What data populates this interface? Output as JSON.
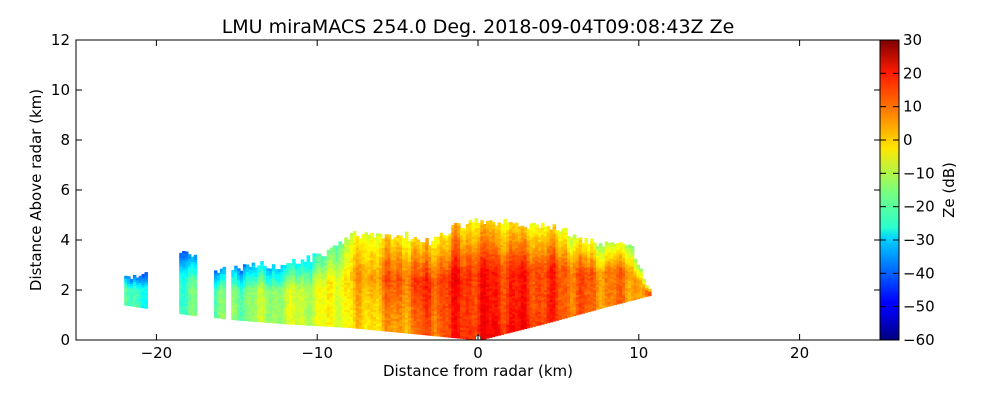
{
  "chart_data": {
    "type": "heatmap",
    "title": "LMU miraMACS 254.0 Deg. 2018-09-04T09:08:43Z  Ze",
    "xlabel": "Distance from radar (km)",
    "ylabel": "Distance Above radar  (km)",
    "xlim": [
      -25,
      25
    ],
    "ylim": [
      0,
      12
    ],
    "xticks": [
      "−20",
      "−10",
      "0",
      "10",
      "20"
    ],
    "yticks": [
      "0",
      "2",
      "4",
      "6",
      "8",
      "10",
      "12"
    ],
    "colorbar": {
      "label": "Ze (dB)",
      "range": [
        -60,
        30
      ],
      "ticks": [
        "−60",
        "−50",
        "−40",
        "−30",
        "−20",
        "−10",
        "0",
        "10",
        "20",
        "30"
      ],
      "colormap": "jet"
    },
    "echo_top": [
      [
        -22.0,
        2.5
      ],
      [
        -21.5,
        2.4
      ],
      [
        -20.5,
        2.7
      ],
      [
        -19.5,
        2.6
      ],
      [
        -18.8,
        3.4
      ],
      [
        -17.9,
        3.3
      ],
      [
        -16.5,
        2.7
      ],
      [
        -15.5,
        2.8
      ],
      [
        -14.0,
        2.9
      ],
      [
        -12.5,
        3.0
      ],
      [
        -11.0,
        3.2
      ],
      [
        -9.5,
        3.4
      ],
      [
        -8.0,
        4.2
      ],
      [
        -6.0,
        4.1
      ],
      [
        -4.0,
        4.1
      ],
      [
        -3.0,
        3.8
      ],
      [
        -1.5,
        4.5
      ],
      [
        0.0,
        4.7
      ],
      [
        2.0,
        4.6
      ],
      [
        4.0,
        4.6
      ],
      [
        5.5,
        4.3
      ],
      [
        6.5,
        4.0
      ],
      [
        7.5,
        3.8
      ],
      [
        8.5,
        4.0
      ],
      [
        9.5,
        3.6
      ],
      [
        10.0,
        2.8
      ],
      [
        10.7,
        1.8
      ]
    ],
    "echo_bottom": [
      [
        -22.0,
        1.4
      ],
      [
        -18.0,
        1.0
      ],
      [
        -15.0,
        0.8
      ],
      [
        -12.0,
        0.65
      ],
      [
        -8.0,
        0.5
      ],
      [
        -4.0,
        0.25
      ],
      [
        0.0,
        0.0
      ],
      [
        4.0,
        0.65
      ],
      [
        8.0,
        1.35
      ],
      [
        10.7,
        1.8
      ]
    ],
    "core": [
      [
        -5.0,
        0.25,
        -2.0
      ],
      [
        -3.0,
        1.5,
        8.0
      ],
      [
        -1.0,
        2.5,
        16.0
      ],
      [
        0.0,
        2.5,
        20.0
      ],
      [
        2.0,
        2.5,
        18.0
      ],
      [
        4.0,
        2.3,
        14.0
      ],
      [
        6.0,
        2.0,
        8.0
      ],
      [
        8.0,
        2.0,
        2.0
      ],
      [
        -10.0,
        1.0,
        -6.0
      ],
      [
        -14.0,
        1.0,
        -14.0
      ],
      [
        -19.0,
        1.7,
        -22.0
      ],
      [
        0.0,
        0.3,
        26.0
      ]
    ],
    "gaps": [
      [
        -20.7,
        -18.6
      ],
      [
        -17.6,
        -16.5
      ],
      [
        -15.8,
        -15.4
      ]
    ]
  }
}
